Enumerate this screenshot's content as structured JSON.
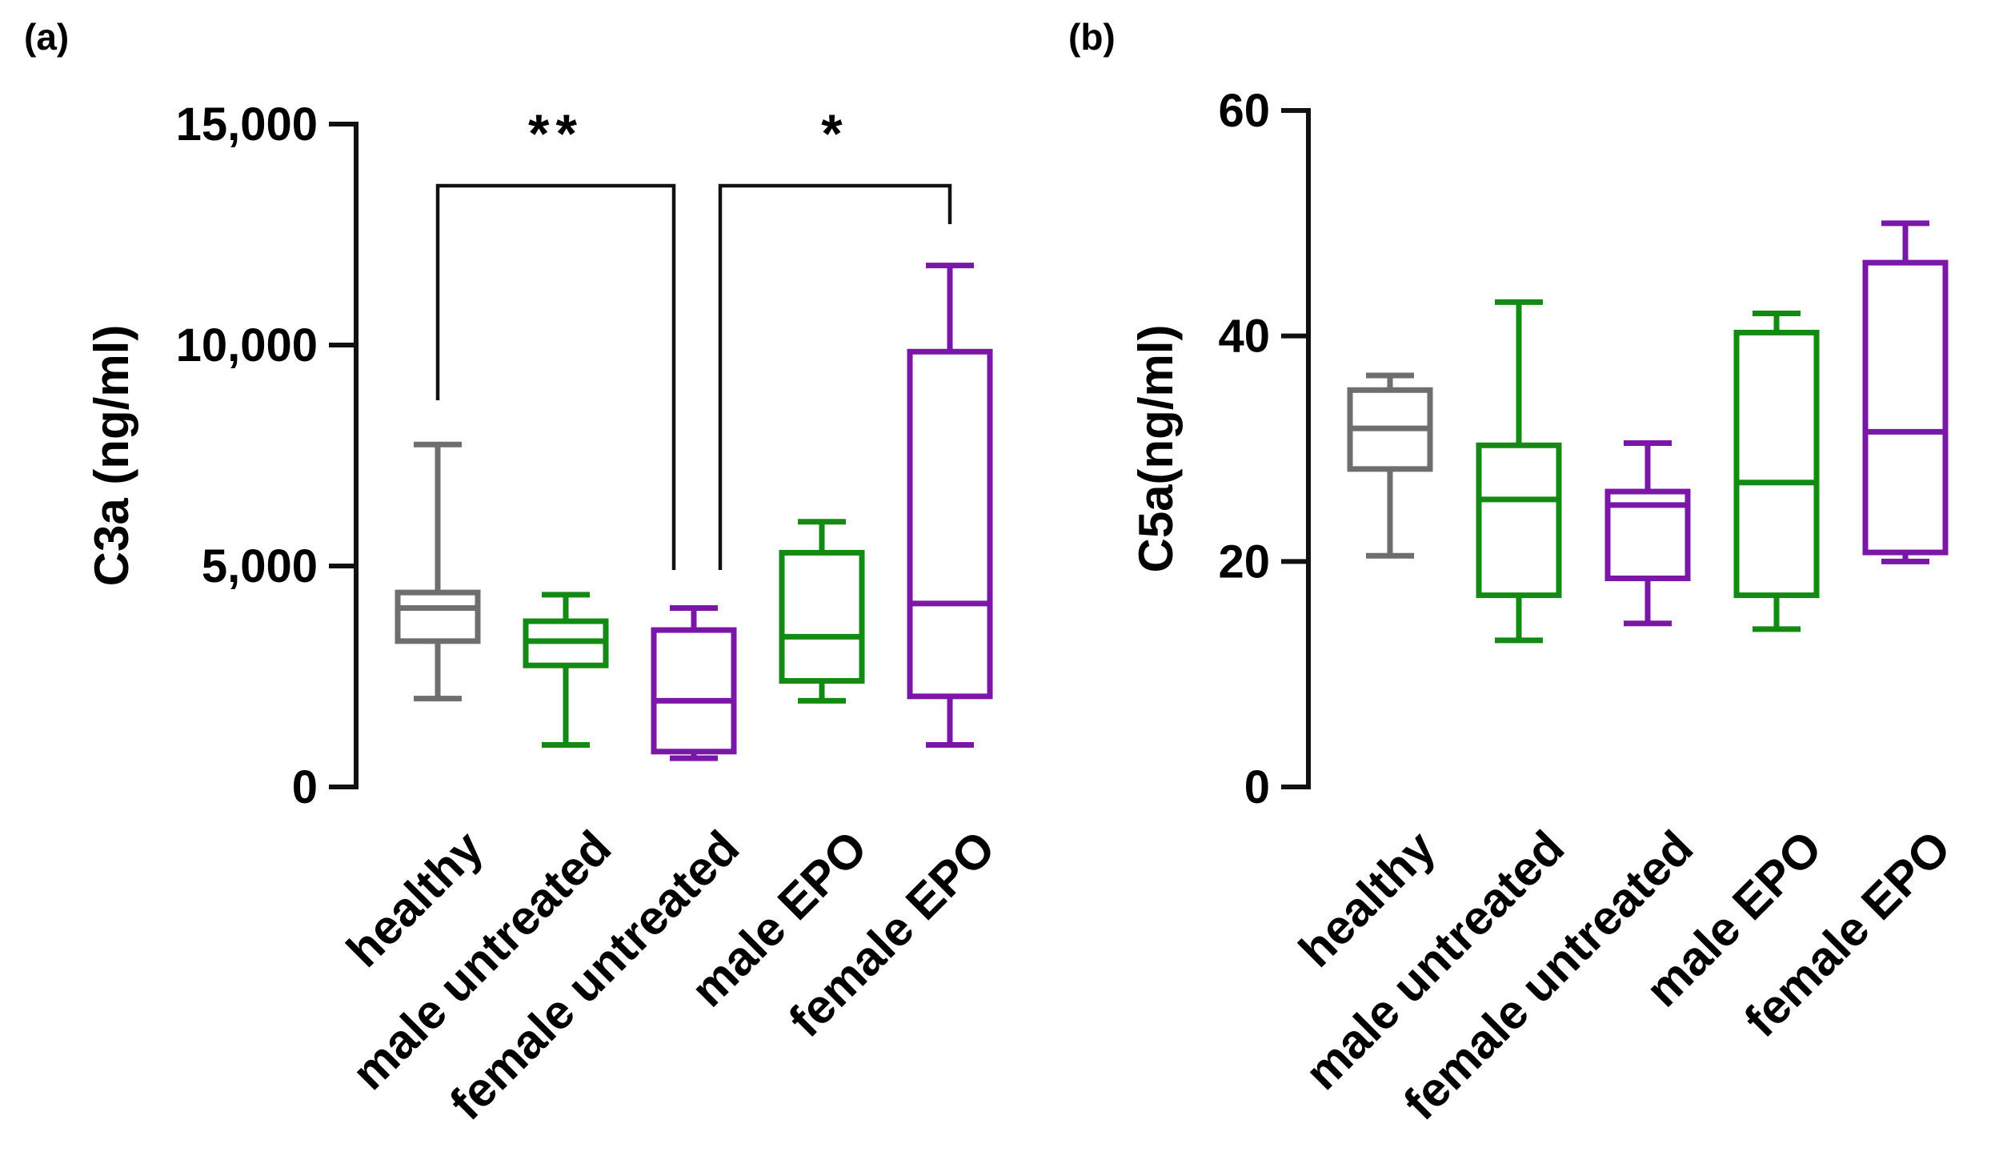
{
  "chart_data": [
    {
      "type": "box",
      "panel_label": "(a)",
      "title": "",
      "xlabel": "",
      "ylabel": "C3a (ng/ml)",
      "ylim": [
        0,
        15000
      ],
      "yticks": [
        0,
        5000,
        10000,
        15000
      ],
      "ytick_labels": [
        "0",
        "5,000",
        "10,000",
        "15,000"
      ],
      "categories": [
        "healthy",
        "male untreated",
        "female untreated",
        "male EPO",
        "female EPO"
      ],
      "colors": [
        "#6e6e6e",
        "#138a13",
        "#7a16a8",
        "#138a13",
        "#7a16a8"
      ],
      "boxes": [
        {
          "min": 2000,
          "q1": 3300,
          "median": 4050,
          "q3": 4400,
          "max": 7750
        },
        {
          "min": 950,
          "q1": 2750,
          "median": 3300,
          "q3": 3750,
          "max": 4350
        },
        {
          "min": 650,
          "q1": 800,
          "median": 1950,
          "q3": 3550,
          "max": 4050
        },
        {
          "min": 1950,
          "q1": 2400,
          "median": 3400,
          "q3": 5300,
          "max": 6000
        },
        {
          "min": 950,
          "q1": 2050,
          "median": 4150,
          "q3": 9850,
          "max": 11800
        }
      ],
      "significance": [
        {
          "from": 0,
          "to": 2,
          "label": "**"
        },
        {
          "from": 2,
          "to": 4,
          "label": "*"
        }
      ]
    },
    {
      "type": "box",
      "panel_label": "(b)",
      "title": "",
      "xlabel": "",
      "ylabel": "C5a(ng/ml)",
      "ylim": [
        0,
        60
      ],
      "yticks": [
        0,
        20,
        40,
        60
      ],
      "ytick_labels": [
        "0",
        "20",
        "40",
        "60"
      ],
      "categories": [
        "healthy",
        "male untreated",
        "female untreated",
        "male EPO",
        "female EPO"
      ],
      "colors": [
        "#6e6e6e",
        "#138a13",
        "#7a16a8",
        "#138a13",
        "#7a16a8"
      ],
      "boxes": [
        {
          "min": 20.5,
          "q1": 28.2,
          "median": 31.8,
          "q3": 35.2,
          "max": 36.5
        },
        {
          "min": 13.0,
          "q1": 17.0,
          "median": 25.5,
          "q3": 30.3,
          "max": 43.0
        },
        {
          "min": 14.5,
          "q1": 18.5,
          "median": 25.0,
          "q3": 26.2,
          "max": 30.5
        },
        {
          "min": 14.0,
          "q1": 17.0,
          "median": 27.0,
          "q3": 40.3,
          "max": 42.0
        },
        {
          "min": 20.0,
          "q1": 20.8,
          "median": 31.5,
          "q3": 46.5,
          "max": 50.0
        }
      ],
      "significance": []
    }
  ]
}
